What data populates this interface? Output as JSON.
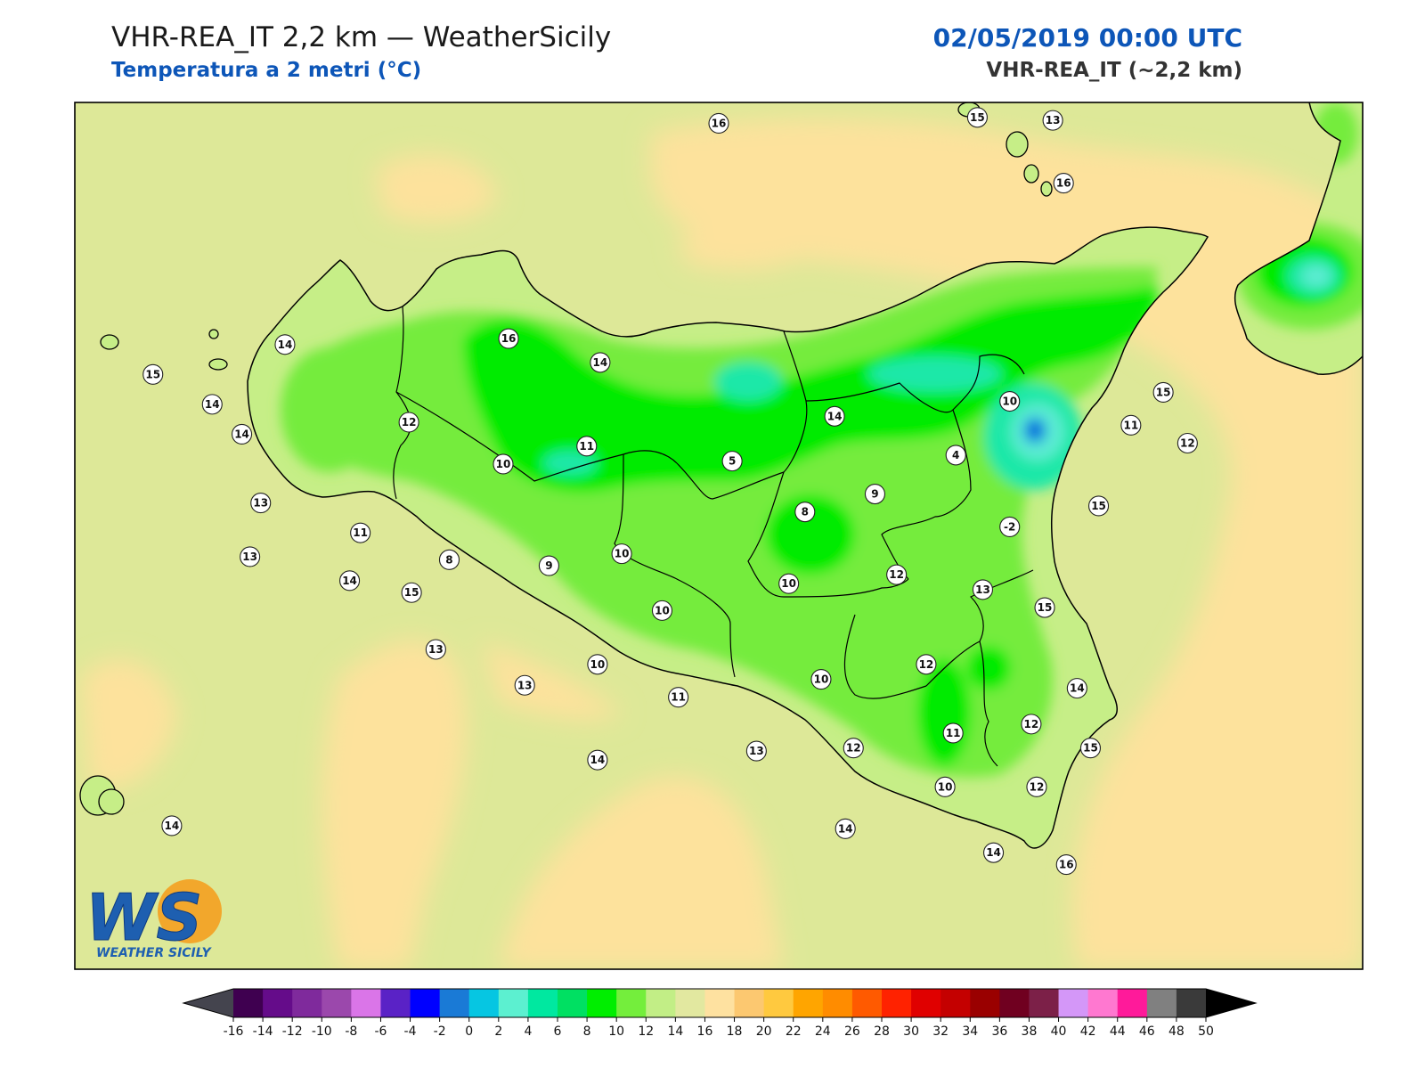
{
  "header": {
    "title": "VHR-REA_IT 2,2 km — WeatherSicily",
    "subtitle": "Temperatura a 2 metri (°C)",
    "date": "02/05/2019 00:00 UTC",
    "model": "VHR-REA_IT (~2,2 km)"
  },
  "logo": {
    "mark": "WS",
    "name": "WEATHER SICILY"
  },
  "colors": {
    "sea_mid": "#dde898",
    "sea_warm": "#fde29c",
    "land_light": "#c6ee87",
    "land_mid": "#74ec3c",
    "land_core": "#05eb05",
    "cold_aqua": "#1ce8a8",
    "cold_cyan": "#5cecd2",
    "very_cold": "#0a3ad8"
  },
  "stations": [
    {
      "v": "16",
      "lon": 14.0,
      "lat": 39.0
    },
    {
      "v": "15",
      "lon": 14.96,
      "lat": 39.02
    },
    {
      "v": "13",
      "lon": 15.24,
      "lat": 39.01
    },
    {
      "v": "16",
      "lon": 15.28,
      "lat": 38.8
    },
    {
      "v": "14",
      "lon": 12.39,
      "lat": 38.26
    },
    {
      "v": "16",
      "lon": 13.22,
      "lat": 38.28
    },
    {
      "v": "14",
      "lon": 13.56,
      "lat": 38.2
    },
    {
      "v": "15",
      "lon": 11.9,
      "lat": 38.16
    },
    {
      "v": "14",
      "lon": 12.12,
      "lat": 38.06
    },
    {
      "v": "14",
      "lon": 12.23,
      "lat": 37.96
    },
    {
      "v": "12",
      "lon": 12.85,
      "lat": 38.0
    },
    {
      "v": "11",
      "lon": 13.51,
      "lat": 37.92
    },
    {
      "v": "10",
      "lon": 13.2,
      "lat": 37.86
    },
    {
      "v": "5",
      "lon": 14.05,
      "lat": 37.87
    },
    {
      "v": "14",
      "lon": 14.43,
      "lat": 38.02
    },
    {
      "v": "10",
      "lon": 15.08,
      "lat": 38.07
    },
    {
      "v": "11",
      "lon": 15.53,
      "lat": 37.99
    },
    {
      "v": "15",
      "lon": 15.65,
      "lat": 38.1
    },
    {
      "v": "12",
      "lon": 15.74,
      "lat": 37.93
    },
    {
      "v": "4",
      "lon": 14.88,
      "lat": 37.89
    },
    {
      "v": "9",
      "lon": 14.58,
      "lat": 37.76
    },
    {
      "v": "8",
      "lon": 14.32,
      "lat": 37.7
    },
    {
      "v": "-2",
      "lon": 15.08,
      "lat": 37.65
    },
    {
      "v": "15",
      "lon": 15.41,
      "lat": 37.72
    },
    {
      "v": "13",
      "lon": 12.3,
      "lat": 37.73
    },
    {
      "v": "11",
      "lon": 12.67,
      "lat": 37.63
    },
    {
      "v": "13",
      "lon": 12.26,
      "lat": 37.55
    },
    {
      "v": "8",
      "lon": 13.0,
      "lat": 37.54
    },
    {
      "v": "9",
      "lon": 13.37,
      "lat": 37.52
    },
    {
      "v": "10",
      "lon": 13.64,
      "lat": 37.56
    },
    {
      "v": "12",
      "lon": 14.66,
      "lat": 37.49
    },
    {
      "v": "14",
      "lon": 12.63,
      "lat": 37.47
    },
    {
      "v": "15",
      "lon": 12.86,
      "lat": 37.43
    },
    {
      "v": "10",
      "lon": 14.26,
      "lat": 37.46
    },
    {
      "v": "13",
      "lon": 14.98,
      "lat": 37.44
    },
    {
      "v": "15",
      "lon": 15.21,
      "lat": 37.38
    },
    {
      "v": "10",
      "lon": 13.79,
      "lat": 37.37
    },
    {
      "v": "13",
      "lon": 12.95,
      "lat": 37.24
    },
    {
      "v": "10",
      "lon": 13.55,
      "lat": 37.19
    },
    {
      "v": "12",
      "lon": 14.77,
      "lat": 37.19
    },
    {
      "v": "13",
      "lon": 13.28,
      "lat": 37.12
    },
    {
      "v": "10",
      "lon": 14.38,
      "lat": 37.14
    },
    {
      "v": "11",
      "lon": 13.85,
      "lat": 37.08
    },
    {
      "v": "14",
      "lon": 15.33,
      "lat": 37.11
    },
    {
      "v": "12",
      "lon": 15.16,
      "lat": 36.99
    },
    {
      "v": "11",
      "lon": 14.87,
      "lat": 36.96
    },
    {
      "v": "14",
      "lon": 13.55,
      "lat": 36.87
    },
    {
      "v": "13",
      "lon": 14.14,
      "lat": 36.9
    },
    {
      "v": "12",
      "lon": 14.5,
      "lat": 36.91
    },
    {
      "v": "15",
      "lon": 15.38,
      "lat": 36.91
    },
    {
      "v": "10",
      "lon": 14.84,
      "lat": 36.78
    },
    {
      "v": "12",
      "lon": 15.18,
      "lat": 36.78
    },
    {
      "v": "14",
      "lon": 14.47,
      "lat": 36.64
    },
    {
      "v": "14",
      "lon": 15.02,
      "lat": 36.56
    },
    {
      "v": "16",
      "lon": 15.29,
      "lat": 36.52
    },
    {
      "v": "14",
      "lon": 11.97,
      "lat": 36.65
    }
  ],
  "colorbar": {
    "ticks": [
      "-16",
      "-14",
      "-12",
      "-10",
      "-8",
      "-6",
      "-4",
      "-2",
      "0",
      "2",
      "4",
      "6",
      "8",
      "10",
      "12",
      "14",
      "16",
      "18",
      "20",
      "22",
      "24",
      "26",
      "28",
      "30",
      "32",
      "34",
      "36",
      "38",
      "40",
      "42",
      "44",
      "46",
      "48",
      "50"
    ],
    "colors": [
      "#3f0050",
      "#650c8a",
      "#7f2a9c",
      "#9b48ac",
      "#da75e8",
      "#5a22c6",
      "#0000ff",
      "#1a7ad6",
      "#06c6e2",
      "#5cf0d0",
      "#00e8a0",
      "#00e062",
      "#00ee00",
      "#74ee3c",
      "#c2ee86",
      "#e2e8a0",
      "#fee1a0",
      "#fcc870",
      "#ffc93f",
      "#ffa500",
      "#ff8c00",
      "#ff5a00",
      "#ff2200",
      "#e00000",
      "#c40000",
      "#9a0000",
      "#700020",
      "#7c2048",
      "#d497f8",
      "#ff78d0",
      "#ff1a9a",
      "#808080",
      "#3a3a3a"
    ]
  }
}
